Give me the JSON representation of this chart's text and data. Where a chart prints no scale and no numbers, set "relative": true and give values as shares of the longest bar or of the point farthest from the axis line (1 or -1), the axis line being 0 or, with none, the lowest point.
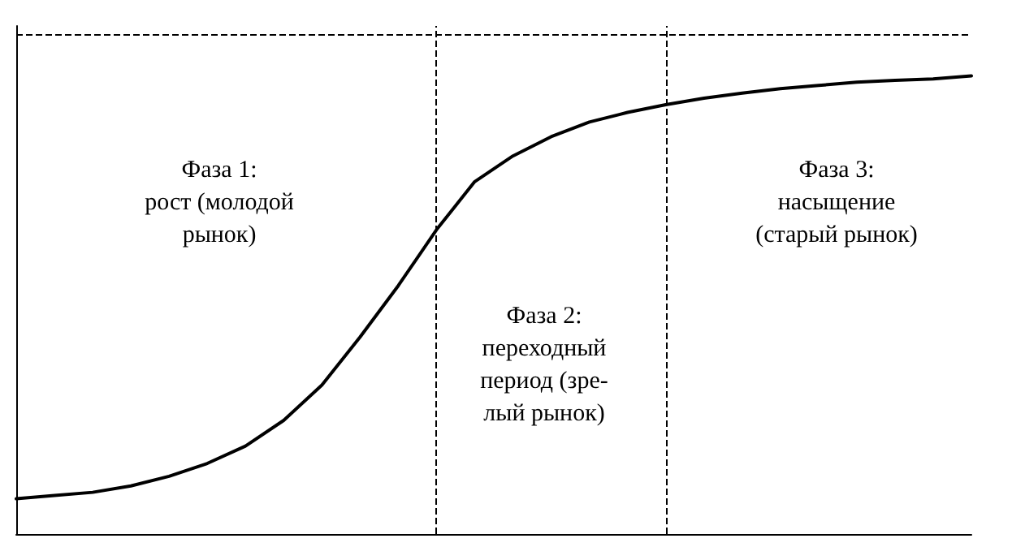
{
  "chart_data": {
    "type": "line",
    "relative": true,
    "grid": false,
    "marker": "none",
    "line_style": "solid",
    "categories": [
      null,
      null,
      null,
      null,
      null,
      null,
      null,
      null,
      null,
      null,
      null,
      null,
      null,
      null,
      null,
      null,
      null,
      null,
      null,
      null,
      null,
      null,
      null,
      null,
      null,
      null
    ],
    "series": [
      {
        "color": "#000000",
        "values": [
          0.077,
          0.084,
          0.091,
          0.105,
          0.126,
          0.154,
          0.192,
          0.248,
          0.325,
          0.43,
          0.542,
          0.664,
          0.769,
          0.825,
          0.867,
          0.899,
          0.92,
          0.937,
          0.951,
          0.962,
          0.972,
          0.979,
          0.986,
          0.99,
          0.993,
          1
        ]
      }
    ],
    "ref_lines": [
      {
        "axis": "y",
        "value": 1.087,
        "line_style": "dashed",
        "color": "#000000"
      }
    ],
    "annotations": [
      "Фаза 1:\nрост (молодой\nрынок)",
      "Фаза 2:\nпереходный\nпериод (зре-\nлый рынок)",
      "Фаза 3:\nнасыщение\n(старый рынок)"
    ]
  }
}
